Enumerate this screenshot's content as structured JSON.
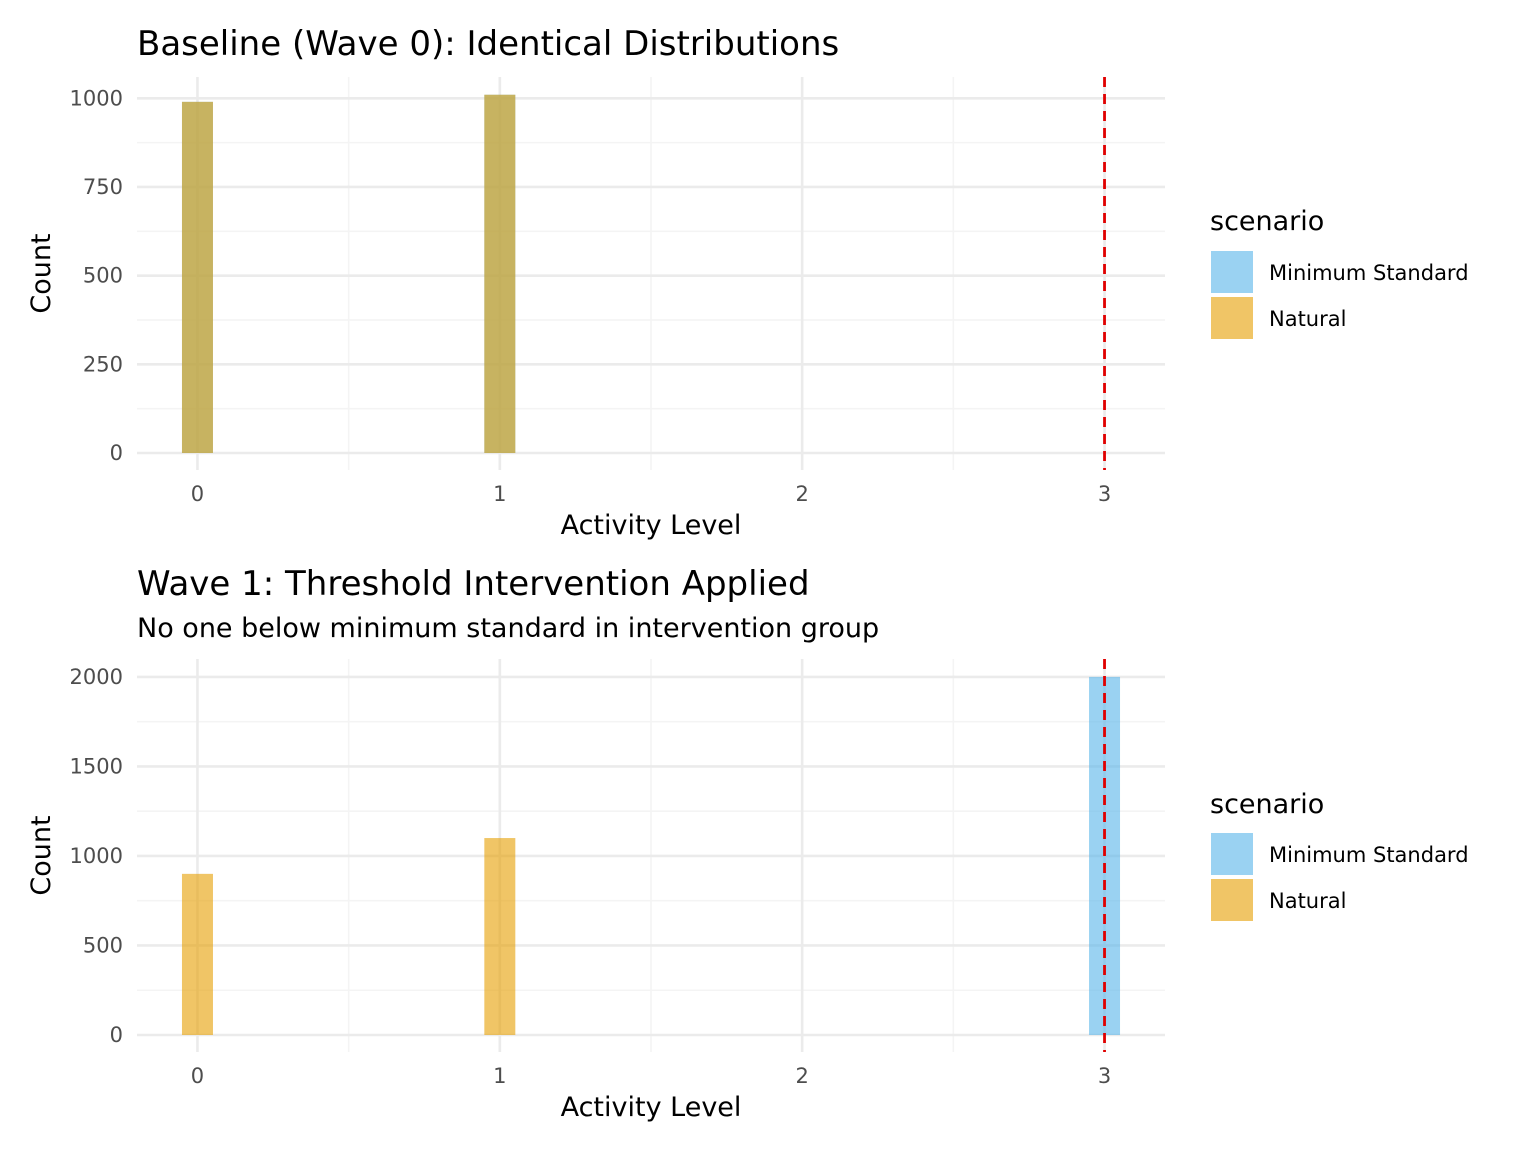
{
  "chart_data": [
    {
      "type": "bar",
      "title": "Baseline (Wave 0): Identical Distributions",
      "subtitle": "",
      "xlabel": "Activity Level",
      "ylabel": "Count",
      "xlim": [
        -0.2,
        3.2
      ],
      "ylim": [
        0,
        1060
      ],
      "x_ticks": [
        0,
        1,
        2,
        3
      ],
      "y_ticks": [
        0,
        250,
        500,
        750,
        1000
      ],
      "threshold": 3,
      "series": [
        {
          "name": "Minimum Standard",
          "x": [
            0,
            1
          ],
          "values": [
            990,
            1010
          ]
        },
        {
          "name": "Natural",
          "x": [
            0,
            1
          ],
          "values": [
            990,
            1010
          ]
        }
      ],
      "legend": {
        "title": "scenario",
        "position": "right",
        "entries": [
          "Minimum Standard",
          "Natural"
        ]
      },
      "grid": true
    },
    {
      "type": "bar",
      "title": "Wave 1: Threshold Intervention Applied",
      "subtitle": "No one below minimum standard in intervention group",
      "xlabel": "Activity Level",
      "ylabel": "Count",
      "xlim": [
        -0.2,
        3.2
      ],
      "ylim": [
        0,
        2100
      ],
      "x_ticks": [
        0,
        1,
        2,
        3
      ],
      "y_ticks": [
        0,
        500,
        1000,
        1500,
        2000
      ],
      "threshold": 3,
      "series": [
        {
          "name": "Minimum Standard",
          "x": [
            3
          ],
          "values": [
            2000
          ]
        },
        {
          "name": "Natural",
          "x": [
            0,
            1
          ],
          "values": [
            900,
            1100
          ]
        }
      ],
      "legend": {
        "title": "scenario",
        "position": "right",
        "entries": [
          "Minimum Standard",
          "Natural"
        ]
      },
      "grid": true
    }
  ],
  "colors": {
    "Minimum Standard": "#56b4e9",
    "Natural": "#e69f00",
    "series_opacity": 0.6,
    "threshold_line": "#e00000",
    "grid_major": "#ebebeb",
    "grid_minor": "#f4f4f4"
  }
}
